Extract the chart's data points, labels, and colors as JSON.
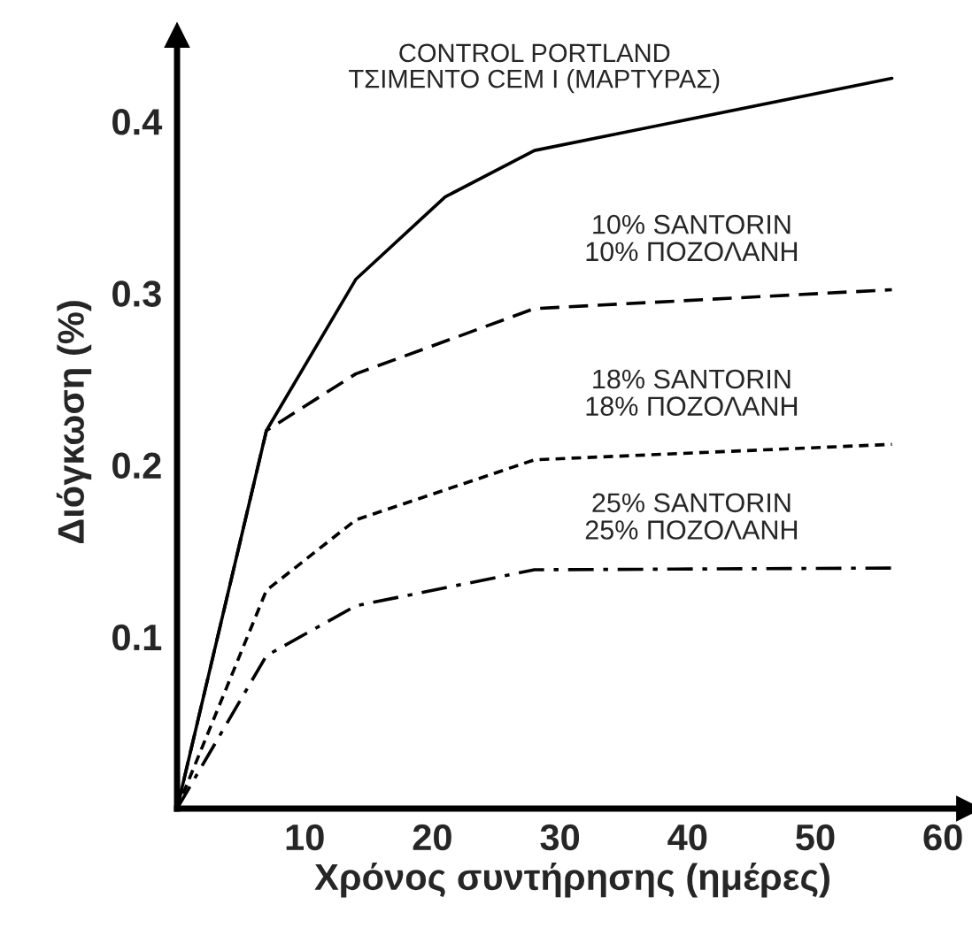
{
  "chart_data": {
    "type": "line",
    "xlabel": "Χρόνος συντήρησης (ημέρες)",
    "ylabel": "Διόγκωση (%)",
    "xlim": [
      0,
      62
    ],
    "ylim": [
      0,
      0.45
    ],
    "xticks": [
      10,
      20,
      30,
      40,
      50,
      60
    ],
    "yticks": [
      0.1,
      0.2,
      0.3,
      0.4
    ],
    "grid": false,
    "legend": false,
    "marker": "none",
    "series": [
      {
        "name": "CONTROL PORTLAND\nΤΣΙΜΕΝΤΟ CEM I (ΜΑΡΤΥΡΑΣ)",
        "color": "#000000",
        "line_style": "solid",
        "x": [
          0,
          7,
          14,
          21,
          28,
          56
        ],
        "values": [
          0,
          0.22,
          0.308,
          0.356,
          0.383,
          0.425
        ]
      },
      {
        "name": "10% SANTORIN\n10% ΠΟΖΟΛΑΝΗ",
        "color": "#000000",
        "line_style": "dashed",
        "x": [
          0,
          7,
          14,
          28,
          56
        ],
        "values": [
          0,
          0.22,
          0.253,
          0.291,
          0.302
        ]
      },
      {
        "name": "18% SANTORIN\n18% ΠΟΖΟΛΑΝΗ",
        "color": "#000000",
        "line_style": "dotted",
        "x": [
          0,
          7,
          14,
          28,
          56
        ],
        "values": [
          0,
          0.127,
          0.168,
          0.203,
          0.212
        ]
      },
      {
        "name": "25% SANTORIN\n25% ΠΟΖΟΛΑΝΗ",
        "color": "#000000",
        "line_style": "dashdot",
        "x": [
          0,
          7,
          14,
          28,
          56
        ],
        "values": [
          0,
          0.089,
          0.118,
          0.139,
          0.14
        ]
      }
    ]
  }
}
